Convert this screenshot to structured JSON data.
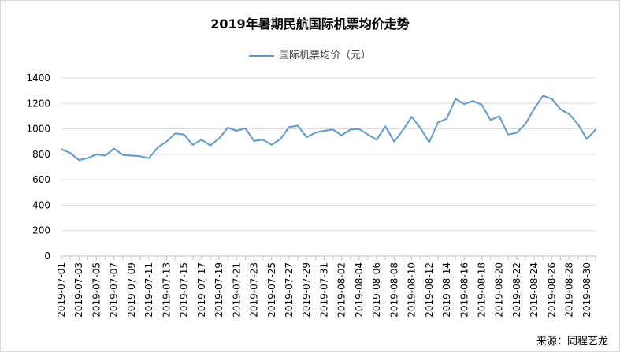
{
  "chart_data": {
    "type": "line",
    "title": "2019年暑期民航国际机票均价走势",
    "source": "来源：同程艺龙",
    "series": [
      {
        "name": "国际机票均价（元）",
        "color": "#5b9bd5",
        "values": [
          840,
          810,
          755,
          770,
          800,
          790,
          845,
          795,
          790,
          785,
          770,
          855,
          900,
          965,
          955,
          875,
          915,
          870,
          925,
          1010,
          985,
          1005,
          905,
          915,
          875,
          920,
          1015,
          1025,
          935,
          970,
          985,
          995,
          950,
          995,
          1000,
          955,
          915,
          1020,
          900,
          990,
          1095,
          1005,
          895,
          1050,
          1080,
          1235,
          1195,
          1220,
          1190,
          1070,
          1100,
          955,
          970,
          1040,
          1160,
          1260,
          1235,
          1155,
          1115,
          1035,
          920,
          995
        ]
      }
    ],
    "xlabels": [
      "2019-07-01",
      "2019-07-03",
      "2019-07-05",
      "2019-07-07",
      "2019-07-09",
      "2019-07-11",
      "2019-07-13",
      "2019-07-15",
      "2019-07-17",
      "2019-07-19",
      "2019-07-21",
      "2019-07-23",
      "2019-07-25",
      "2019-07-27",
      "2019-07-29",
      "2019-07-31",
      "2019-08-02",
      "2019-08-04",
      "2019-08-06",
      "2019-08-08",
      "2019-08-10",
      "2019-08-12",
      "2019-08-14",
      "2019-08-16",
      "2019-08-18",
      "2019-08-20",
      "2019-08-22",
      "2019-08-24",
      "2019-08-26",
      "2019-08-28",
      "2019-08-30"
    ],
    "yticks": [
      "0",
      "200",
      "400",
      "600",
      "800",
      "1000",
      "1200",
      "1400"
    ],
    "ylim": [
      0,
      1400
    ],
    "grid": true,
    "legend": "top-center"
  }
}
